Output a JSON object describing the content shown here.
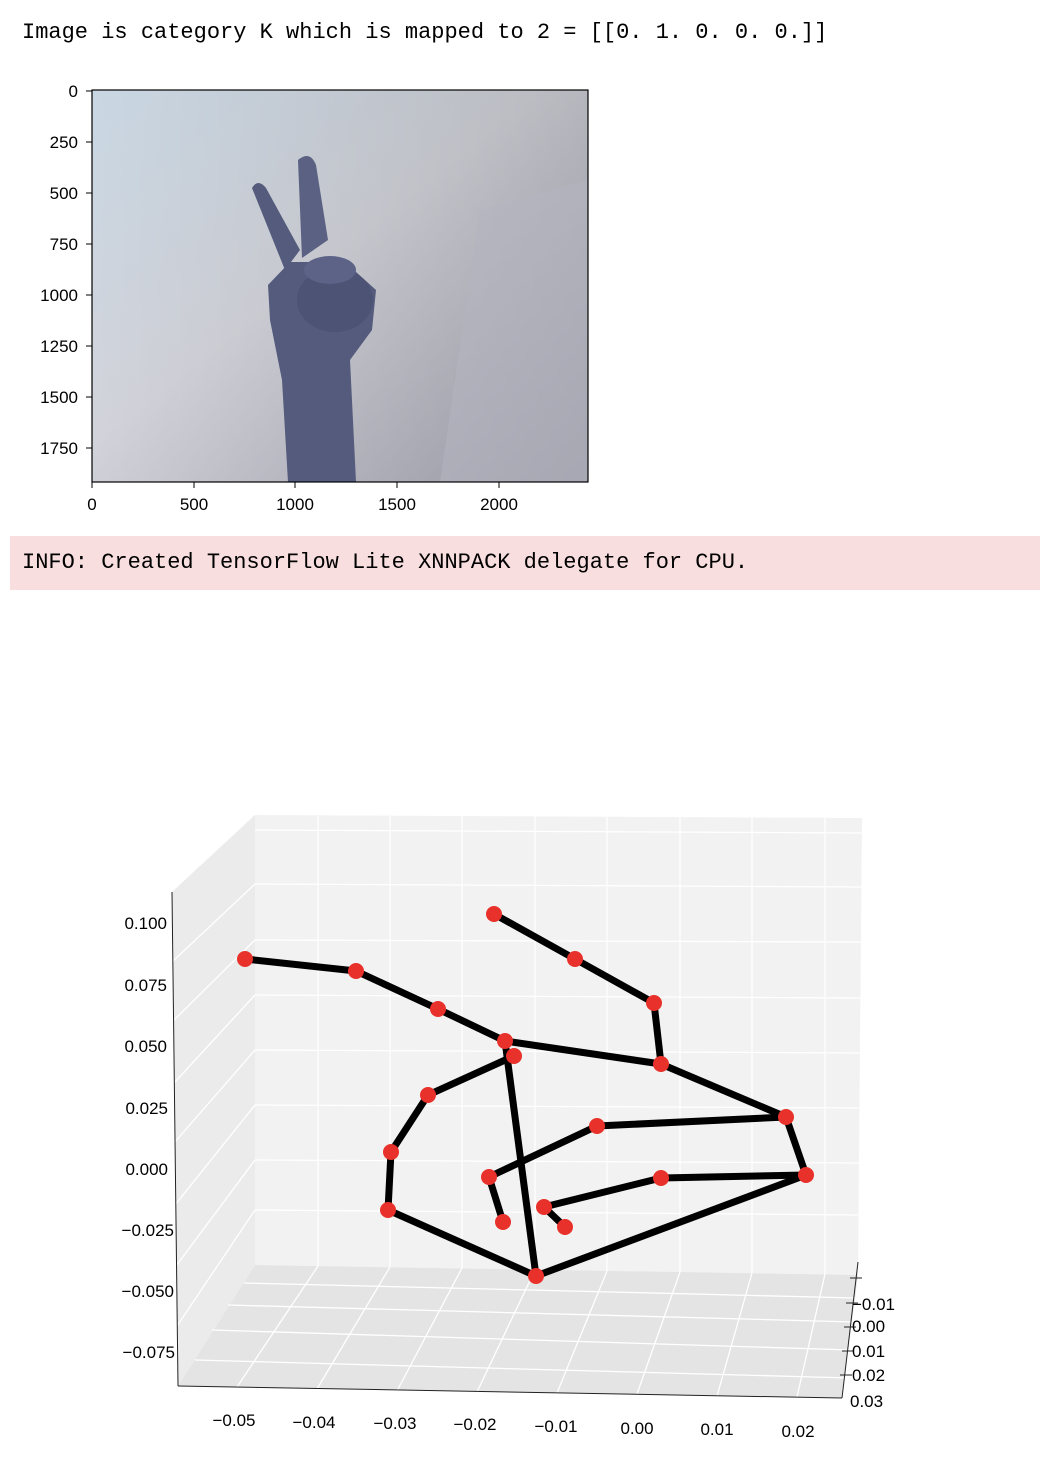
{
  "cell": {
    "stdout": "Image is category K which is mapped to 2 = [[0. 1. 0. 0. 0.]]",
    "stderr": "INFO: Created TensorFlow Lite XNNPACK delegate for CPU."
  },
  "image_plot": {
    "x_ticks": [
      "0",
      "500",
      "1000",
      "1500",
      "2000"
    ],
    "y_ticks": [
      "0",
      "250",
      "500",
      "750",
      "1000",
      "1250",
      "1500",
      "1750"
    ]
  },
  "chart_data": {
    "type": "scatter",
    "title": "",
    "xlabel": "",
    "ylabel": "",
    "zlabel": "",
    "x_ticks": [
      "−0.05",
      "−0.04",
      "−0.03",
      "−0.02",
      "−0.01",
      "0.00",
      "0.01",
      "0.02"
    ],
    "y_ticks": [
      "−0.01",
      "0.00",
      "0.01",
      "0.02",
      "0.03"
    ],
    "z_ticks": [
      "0.100",
      "0.075",
      "0.050",
      "0.025",
      "0.000",
      "−0.025",
      "−0.050",
      "−0.075"
    ],
    "grid": true,
    "marker_color": "#e8312a",
    "line_color": "#000000",
    "landmarks_screen_relative": "21 hand landmarks connected by skeleton lines (wrist, thumb, index, middle, ring, pinky)"
  }
}
